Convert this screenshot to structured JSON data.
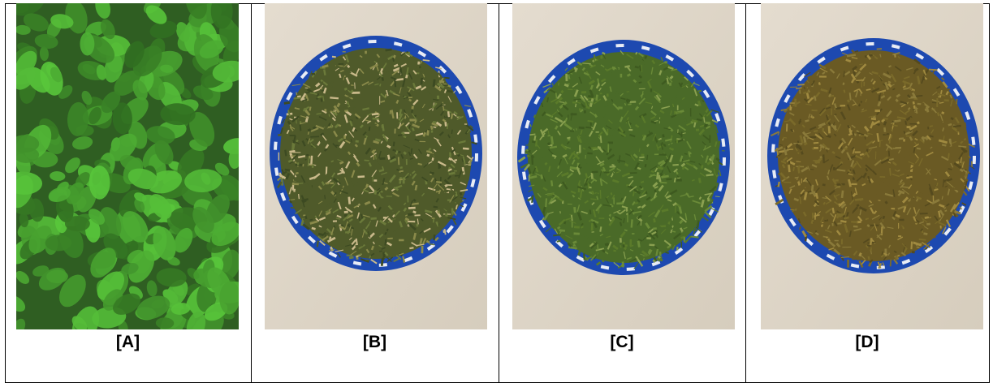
{
  "figure": {
    "panels": [
      {
        "label": "[A]",
        "kind": "fresh-plant"
      },
      {
        "label": "[B]",
        "kind": "dried-on-plate"
      },
      {
        "label": "[C]",
        "kind": "dried-on-plate"
      },
      {
        "label": "[D]",
        "kind": "dried-on-plate"
      }
    ]
  }
}
